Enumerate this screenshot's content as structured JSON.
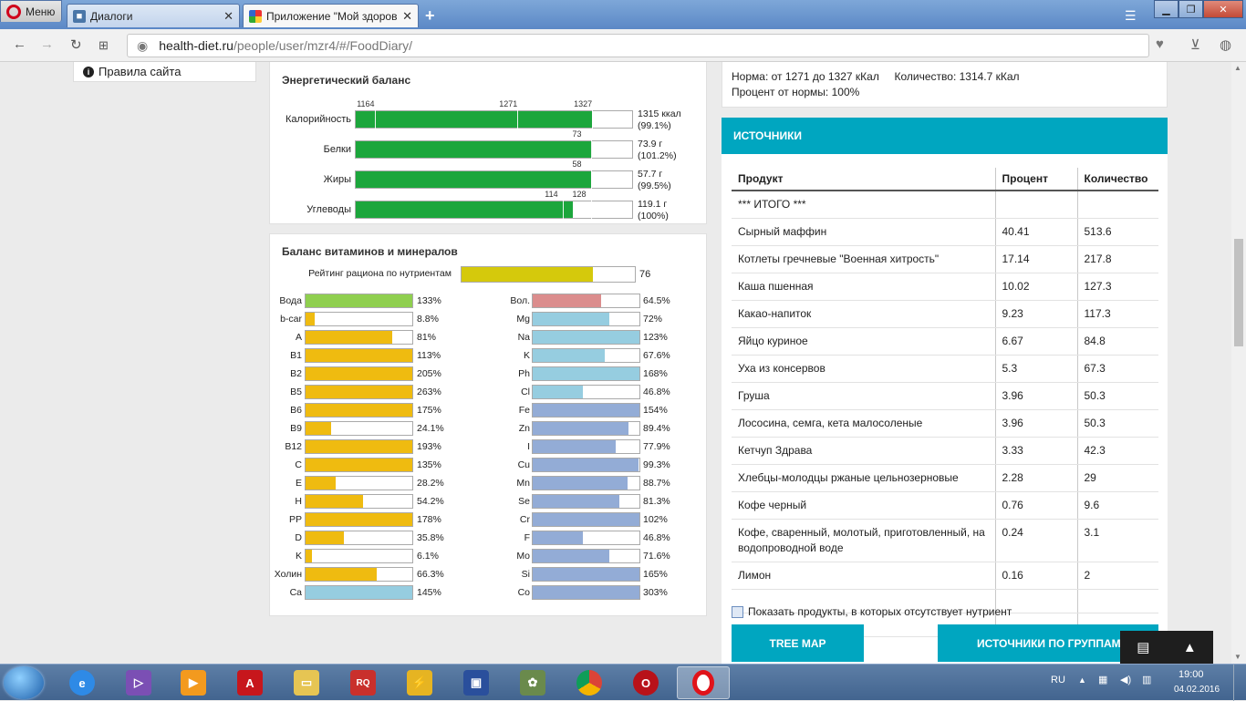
{
  "browser": {
    "menu_label": "Меню",
    "tabs": [
      {
        "title": "Диалоги",
        "close": "✕"
      },
      {
        "title": "Приложение \"Мой здоровый",
        "close": "✕"
      }
    ],
    "add_tab": "+",
    "url_host": "health-diet.ru",
    "url_path": "/people/user/mzr4/#/FoodDiary/"
  },
  "sidebar": {
    "rules_link": "Правила сайта"
  },
  "energy": {
    "title": "Энергетический баланс",
    "rows": [
      {
        "label": "Калорийность",
        "pct": 85.5,
        "value1": "1315 ккал",
        "value2": "(99.1%)",
        "ticks": [
          {
            "text": "1164",
            "pos": 7
          },
          {
            "text": "1271",
            "pos": 58.5
          },
          {
            "text": "1327",
            "pos": 85.5
          }
        ]
      },
      {
        "label": "Белки",
        "pct": 85.5,
        "value1": "73.9 г",
        "value2": "(101.2%)",
        "ticks": [
          {
            "text": "73",
            "pos": 85
          }
        ]
      },
      {
        "label": "Жиры",
        "pct": 85,
        "value1": "57.7 г",
        "value2": "(99.5%)",
        "ticks": [
          {
            "text": "58",
            "pos": 85
          }
        ]
      },
      {
        "label": "Углеводы",
        "pct": 78.5,
        "value1": "119.1 г",
        "value2": "(100%)",
        "ticks": [
          {
            "text": "114",
            "pos": 75
          },
          {
            "text": "128",
            "pos": 85
          }
        ]
      }
    ]
  },
  "vitamins": {
    "title": "Баланс витаминов и минералов",
    "rating_label": "Рейтинг рациона по нутриентам",
    "rating_value": "76",
    "rating_pct": 76,
    "left": [
      {
        "label": "Вода",
        "text": "133%",
        "pct": 100,
        "color": "#8fcf4f"
      },
      {
        "label": "b-car",
        "text": "8.8%",
        "pct": 8.8,
        "color": "#efbb10"
      },
      {
        "label": "A",
        "text": "81%",
        "pct": 81,
        "color": "#efbb10"
      },
      {
        "label": "B1",
        "text": "113%",
        "pct": 100,
        "color": "#efbb10"
      },
      {
        "label": "B2",
        "text": "205%",
        "pct": 100,
        "color": "#efbb10"
      },
      {
        "label": "B5",
        "text": "263%",
        "pct": 100,
        "color": "#efbb10"
      },
      {
        "label": "B6",
        "text": "175%",
        "pct": 100,
        "color": "#efbb10"
      },
      {
        "label": "B9",
        "text": "24.1%",
        "pct": 24.1,
        "color": "#efbb10"
      },
      {
        "label": "B12",
        "text": "193%",
        "pct": 100,
        "color": "#efbb10"
      },
      {
        "label": "C",
        "text": "135%",
        "pct": 100,
        "color": "#efbb10"
      },
      {
        "label": "E",
        "text": "28.2%",
        "pct": 28.2,
        "color": "#efbb10"
      },
      {
        "label": "H",
        "text": "54.2%",
        "pct": 54.2,
        "color": "#efbb10"
      },
      {
        "label": "PP",
        "text": "178%",
        "pct": 100,
        "color": "#efbb10"
      },
      {
        "label": "D",
        "text": "35.8%",
        "pct": 35.8,
        "color": "#efbb10"
      },
      {
        "label": "K",
        "text": "6.1%",
        "pct": 6.1,
        "color": "#efbb10"
      },
      {
        "label": "Холин",
        "text": "66.3%",
        "pct": 66.3,
        "color": "#efbb10"
      },
      {
        "label": "Ca",
        "text": "145%",
        "pct": 100,
        "color": "#96cde0"
      }
    ],
    "right": [
      {
        "label": "Вол.",
        "text": "64.5%",
        "pct": 64.5,
        "color": "#db8d8d"
      },
      {
        "label": "Mg",
        "text": "72%",
        "pct": 72,
        "color": "#96cde0"
      },
      {
        "label": "Na",
        "text": "123%",
        "pct": 100,
        "color": "#96cde0"
      },
      {
        "label": "K",
        "text": "67.6%",
        "pct": 67.6,
        "color": "#96cde0"
      },
      {
        "label": "Ph",
        "text": "168%",
        "pct": 100,
        "color": "#96cde0"
      },
      {
        "label": "Cl",
        "text": "46.8%",
        "pct": 46.8,
        "color": "#96cde0"
      },
      {
        "label": "Fe",
        "text": "154%",
        "pct": 100,
        "color": "#93acd6"
      },
      {
        "label": "Zn",
        "text": "89.4%",
        "pct": 89.4,
        "color": "#93acd6"
      },
      {
        "label": "I",
        "text": "77.9%",
        "pct": 77.9,
        "color": "#93acd6"
      },
      {
        "label": "Cu",
        "text": "99.3%",
        "pct": 99.3,
        "color": "#93acd6"
      },
      {
        "label": "Mn",
        "text": "88.7%",
        "pct": 88.7,
        "color": "#93acd6"
      },
      {
        "label": "Se",
        "text": "81.3%",
        "pct": 81.3,
        "color": "#93acd6"
      },
      {
        "label": "Cr",
        "text": "102%",
        "pct": 100,
        "color": "#93acd6"
      },
      {
        "label": "F",
        "text": "46.8%",
        "pct": 46.8,
        "color": "#93acd6"
      },
      {
        "label": "Mo",
        "text": "71.6%",
        "pct": 71.6,
        "color": "#93acd6"
      },
      {
        "label": "Si",
        "text": "165%",
        "pct": 100,
        "color": "#93acd6"
      },
      {
        "label": "Co",
        "text": "303%",
        "pct": 100,
        "color": "#93acd6"
      }
    ]
  },
  "norm": {
    "line1": "Норма: от 1271 до 1327 кКал     Количество: 1314.7 кКал",
    "line2": "Процент от нормы: 100%"
  },
  "sources": {
    "title": "ИСТОЧНИКИ",
    "columns": [
      "Продукт",
      "Процент",
      "Количество"
    ],
    "rows": [
      [
        "*** ИТОГО ***",
        "",
        ""
      ],
      [
        "Сырный маффин",
        "40.41",
        "513.6"
      ],
      [
        "Котлеты гречневые \"Военная хитрость\"",
        "17.14",
        "217.8"
      ],
      [
        "Каша пшенная",
        "10.02",
        "127.3"
      ],
      [
        "Какао-напиток",
        "9.23",
        "117.3"
      ],
      [
        "Яйцо куриное",
        "6.67",
        "84.8"
      ],
      [
        "Уха из консервов",
        "5.3",
        "67.3"
      ],
      [
        "Груша",
        "3.96",
        "50.3"
      ],
      [
        "Лососина, семга, кета малосоленые",
        "3.96",
        "50.3"
      ],
      [
        "Кетчуп Здрава",
        "3.33",
        "42.3"
      ],
      [
        "Хлебцы-молодцы ржаные цельнозерновые",
        "2.28",
        "29"
      ],
      [
        "Кофе черный",
        "0.76",
        "9.6"
      ],
      [
        "Кофе, сваренный, молотый, приготовленный, на водопроводной воде",
        "0.24",
        "3.1"
      ],
      [
        "Лимон",
        "0.16",
        "2"
      ],
      [
        "",
        "",
        ""
      ],
      [
        "",
        "",
        ""
      ]
    ],
    "show_missing": "Показать продукты, в которых отсутствует нутриент",
    "btn_tree": "TREE MAP",
    "btn_groups": "ИСТОЧНИКИ ПО ГРУППАМ"
  },
  "taskbar": {
    "lang": "RU",
    "time": "19:00",
    "date": "04.02.2016"
  }
}
